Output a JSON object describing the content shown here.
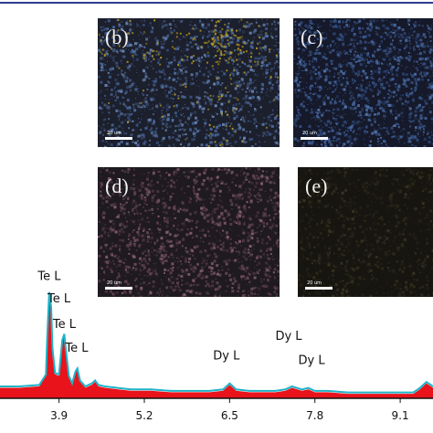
{
  "panels": [
    {
      "id": "b",
      "label": "(b)",
      "scale": "20 um",
      "base": "#1c1f2c",
      "dots": [
        "#4b6aa0",
        "#3b5a8a",
        "#6d8ab8"
      ],
      "accent": "#b59a1c"
    },
    {
      "id": "c",
      "label": "(c)",
      "scale": "20 um",
      "base": "#15192a",
      "dots": [
        "#3f5f9a",
        "#2f4a7c",
        "#5274b0"
      ],
      "accent": null
    },
    {
      "id": "d",
      "label": "(d)",
      "scale": "20 um",
      "base": "#1f1a20",
      "dots": [
        "#6a4a58",
        "#85606e",
        "#563a46"
      ],
      "accent": null
    },
    {
      "id": "e",
      "label": "(e)",
      "scale": "20 um",
      "base": "#17150f",
      "dots": [
        "#2d2a1c",
        "#3a3624",
        "#24221a"
      ],
      "accent": null
    }
  ],
  "chart_data": {
    "type": "area",
    "xlabel": "",
    "ylabel": "",
    "xlim": [
      3.0,
      9.6
    ],
    "ylim": [
      0,
      100
    ],
    "x_ticks": [
      "3.9",
      "5.2",
      "6.5",
      "7.8",
      "9.1"
    ],
    "series": [
      {
        "x": [
          3.0,
          3.3,
          3.6,
          3.7,
          3.72,
          3.75,
          3.78,
          3.8,
          3.84,
          3.9,
          3.95,
          3.98,
          4.0,
          4.05,
          4.1,
          4.15,
          4.18,
          4.22,
          4.3,
          4.4,
          4.45,
          4.5,
          4.6,
          4.8,
          5.0,
          5.3,
          5.6,
          5.9,
          6.2,
          6.4,
          6.5,
          6.6,
          6.8,
          7.0,
          7.2,
          7.35,
          7.45,
          7.6,
          7.7,
          7.8,
          8.0,
          8.3,
          8.6,
          8.9,
          9.1,
          9.3,
          9.4,
          9.5,
          9.6
        ],
        "y": [
          7,
          7,
          8,
          15,
          40,
          70,
          60,
          32,
          16,
          15,
          38,
          42,
          33,
          14,
          9,
          17,
          19,
          11,
          7,
          9,
          11,
          8,
          7,
          6,
          5,
          5,
          4,
          4,
          4,
          5,
          9,
          5,
          4,
          4,
          4,
          5,
          7,
          5,
          6,
          4,
          4,
          3,
          3,
          3,
          3,
          3,
          6,
          10,
          7
        ]
      }
    ],
    "annotations": [
      {
        "text": "Te L",
        "x": 3.75,
        "y": 79
      },
      {
        "text": "Te L",
        "x": 3.9,
        "y": 64
      },
      {
        "text": "Te L",
        "x": 3.98,
        "y": 47
      },
      {
        "text": "Te L",
        "x": 4.17,
        "y": 31
      },
      {
        "text": "Dy L",
        "x": 6.45,
        "y": 26
      },
      {
        "text": "Dy L",
        "x": 7.4,
        "y": 39
      },
      {
        "text": "Dy L",
        "x": 7.75,
        "y": 23
      }
    ],
    "colors": {
      "fill": "#e8131b",
      "outline": "#1fb3c8",
      "axis": "#111111"
    },
    "grid": false
  }
}
